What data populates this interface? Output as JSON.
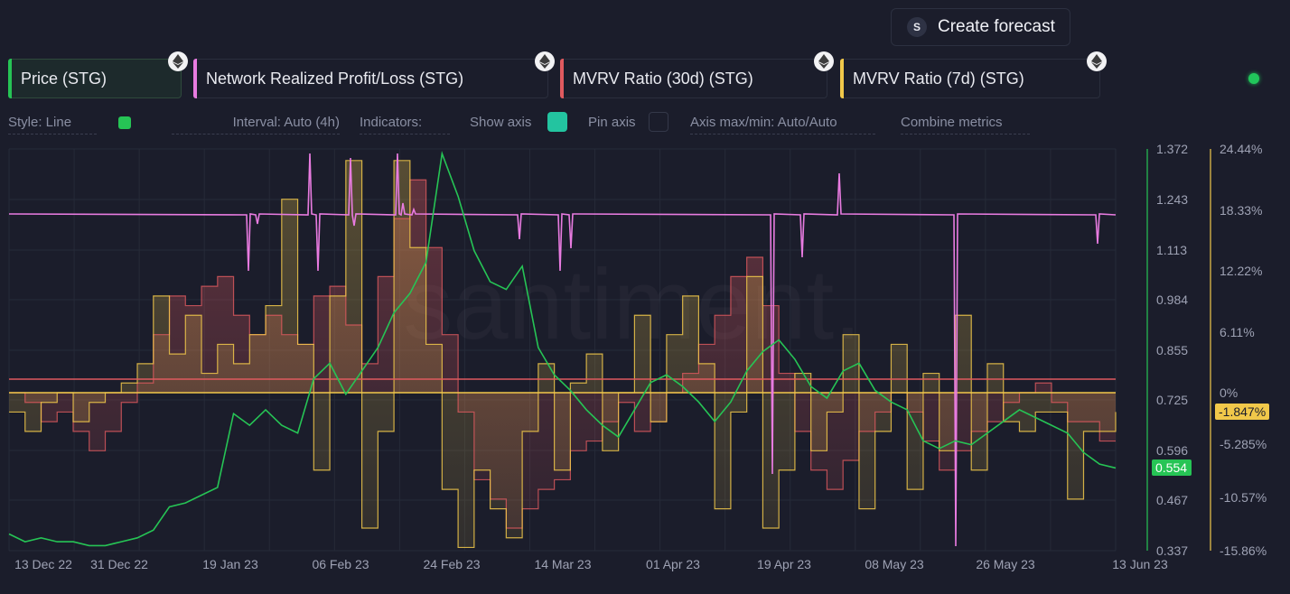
{
  "toolbar": {
    "forecast_icon": "S",
    "forecast_label": "Create forecast"
  },
  "metrics": [
    {
      "label": "Price (STG)",
      "color": "#26c455",
      "icon": "ethereum-icon",
      "active": true
    },
    {
      "label": "Network Realized Profit/Loss (STG)",
      "color": "#e87be0",
      "icon": "ethereum-icon",
      "active": false
    },
    {
      "label": "MVRV Ratio (30d) (STG)",
      "color": "#e05a5f",
      "icon": "ethereum-icon",
      "active": false
    },
    {
      "label": "MVRV Ratio (7d) (STG)",
      "color": "#f1c84a",
      "icon": "ethereum-icon",
      "active": false
    }
  ],
  "settings": {
    "style": "Style: Line",
    "style_color": "#26c455",
    "interval": "Interval: Auto (4h)",
    "indicators": "Indicators:",
    "show_axis": "Show axis",
    "show_axis_on": true,
    "pin_axis": "Pin axis",
    "pin_axis_on": false,
    "axis_maxmin": "Axis max/min: Auto/Auto",
    "combine": "Combine metrics"
  },
  "status": {
    "color": "#21c65b"
  },
  "chart_data": {
    "type": "line",
    "x_ticks": [
      "13 Dec 22",
      "31 Dec 22",
      "19 Jan 23",
      "06 Feb 23",
      "24 Feb 23",
      "14 Mar 23",
      "01 Apr 23",
      "19 Apr 23",
      "08 May 23",
      "26 May 23",
      "13 Jun 23"
    ],
    "price_axis": {
      "ticks": [
        "1.372",
        "1.243",
        "1.113",
        "0.984",
        "0.855",
        "0.725",
        "0.596",
        "0.467",
        "0.337"
      ],
      "ylim": [
        0.337,
        1.372
      ],
      "current": "0.554"
    },
    "mvrv_axis": {
      "ticks": [
        "24.44%",
        "18.33%",
        "12.22%",
        "6.11%",
        "0%",
        "-5.285%",
        "-10.57%",
        "-15.86%"
      ],
      "current": "-1.847%"
    },
    "series": [
      {
        "name": "Price (STG)",
        "color": "#26c455",
        "values": [
          0.38,
          0.36,
          0.37,
          0.36,
          0.36,
          0.35,
          0.35,
          0.36,
          0.37,
          0.39,
          0.45,
          0.46,
          0.48,
          0.5,
          0.69,
          0.66,
          0.7,
          0.66,
          0.64,
          0.78,
          0.82,
          0.74,
          0.8,
          0.86,
          0.95,
          1.0,
          1.08,
          1.36,
          1.25,
          1.11,
          1.03,
          1.01,
          1.07,
          0.86,
          0.79,
          0.75,
          0.7,
          0.66,
          0.63,
          0.7,
          0.77,
          0.79,
          0.76,
          0.72,
          0.67,
          0.72,
          0.8,
          0.85,
          0.88,
          0.83,
          0.76,
          0.73,
          0.8,
          0.82,
          0.75,
          0.72,
          0.7,
          0.62,
          0.6,
          0.62,
          0.61,
          0.64,
          0.67,
          0.7,
          0.68,
          0.66,
          0.64,
          0.59,
          0.56,
          0.55
        ]
      },
      {
        "name": "Network Realized Profit/Loss (STG)",
        "color": "#e87be0"
      },
      {
        "name": "MVRV Ratio (30d) (STG)",
        "color": "#e05a5f",
        "values": [
          0,
          -1,
          -3,
          -2,
          -4,
          -6,
          -4,
          -1,
          1,
          6,
          10,
          9,
          11,
          12,
          8,
          6,
          8,
          6,
          5,
          10,
          11,
          7,
          3,
          12,
          18,
          22,
          15,
          6,
          -2,
          -9,
          -11,
          -14,
          -12,
          -10,
          -9,
          -6,
          -5,
          -3,
          -1,
          -4,
          -3,
          0,
          2,
          5,
          8,
          12,
          14,
          9,
          2,
          -4,
          -8,
          -10,
          -7,
          -4,
          -2,
          0,
          -2,
          -5,
          -8,
          -6,
          -4,
          -3,
          -1,
          0,
          1,
          -1,
          -3,
          -3,
          -5,
          -5
        ]
      },
      {
        "name": "MVRV Ratio (7d) (STG)",
        "color": "#f1c84a",
        "values": [
          -2,
          -4,
          -1,
          0,
          -3,
          -1,
          0,
          1,
          3,
          10,
          4,
          8,
          2,
          5,
          3,
          6,
          9,
          20,
          5,
          -8,
          10,
          24,
          -14,
          -4,
          24,
          15,
          5,
          -10,
          -16,
          -8,
          -12,
          -15,
          -4,
          3,
          -8,
          1,
          4,
          -6,
          0,
          8,
          -3,
          6,
          10,
          3,
          -12,
          -2,
          12,
          -14,
          -8,
          2,
          -6,
          -2,
          6,
          -12,
          -4,
          5,
          -10,
          2,
          -6,
          8,
          -8,
          3,
          -3,
          -4,
          -2,
          -2,
          -11,
          -4,
          -4,
          -2
        ]
      }
    ]
  }
}
